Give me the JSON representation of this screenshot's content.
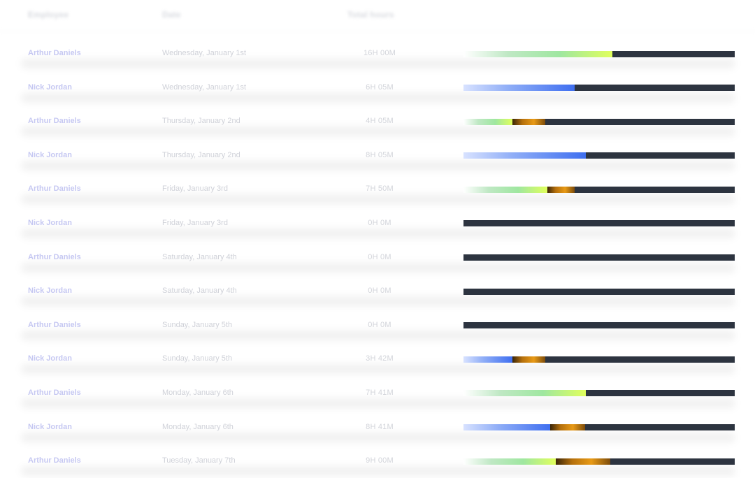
{
  "header": {
    "col_employee": "Employee",
    "col_date": "Date",
    "col_total": "Total hours"
  },
  "colors": {
    "bar_track": "#2d3440",
    "idle_segment": "#e89a16",
    "arthur_segment": "#9fe7a0",
    "nick_segment": "#3f6ff0"
  },
  "rows": [
    {
      "name": "Arthur Daniels",
      "date": "Wednesday, January 1st",
      "duration": "16H 00M",
      "bar": {
        "fill": 0.55,
        "idle": 0,
        "color": "green"
      }
    },
    {
      "name": "Nick Jordan",
      "date": "Wednesday, January 1st",
      "duration": "6H 05M",
      "bar": {
        "fill": 0.41,
        "idle": 0,
        "color": "blue"
      }
    },
    {
      "name": "Arthur Daniels",
      "date": "Thursday, January 2nd",
      "duration": "4H 05M",
      "bar": {
        "fill": 0.18,
        "idle": 0.12,
        "color": "green"
      }
    },
    {
      "name": "Nick Jordan",
      "date": "Thursday, January 2nd",
      "duration": "8H 05M",
      "bar": {
        "fill": 0.45,
        "idle": 0,
        "color": "blue"
      }
    },
    {
      "name": "Arthur Daniels",
      "date": "Friday, January 3rd",
      "duration": "7H 50M",
      "bar": {
        "fill": 0.31,
        "idle": 0.1,
        "color": "green"
      }
    },
    {
      "name": "Nick Jordan",
      "date": "Friday, January 3rd",
      "duration": "0H 0M",
      "bar": {
        "fill": 0,
        "idle": 0,
        "color": "blue"
      }
    },
    {
      "name": "Arthur Daniels",
      "date": "Saturday, January 4th",
      "duration": "0H 0M",
      "bar": {
        "fill": 0,
        "idle": 0,
        "color": "green"
      }
    },
    {
      "name": "Nick Jordan",
      "date": "Saturday, January 4th",
      "duration": "0H 0M",
      "bar": {
        "fill": 0,
        "idle": 0,
        "color": "blue"
      }
    },
    {
      "name": "Arthur Daniels",
      "date": "Sunday, January 5th",
      "duration": "0H 0M",
      "bar": {
        "fill": 0,
        "idle": 0,
        "color": "green"
      }
    },
    {
      "name": "Nick Jordan",
      "date": "Sunday, January 5th",
      "duration": "3H 42M",
      "bar": {
        "fill": 0.18,
        "idle": 0.12,
        "color": "blue"
      }
    },
    {
      "name": "Arthur Daniels",
      "date": "Monday, January 6th",
      "duration": "7H 41M",
      "bar": {
        "fill": 0.45,
        "idle": 0,
        "color": "green"
      }
    },
    {
      "name": "Nick Jordan",
      "date": "Monday, January 6th",
      "duration": "8H 41M",
      "bar": {
        "fill": 0.32,
        "idle": 0.13,
        "color": "blue"
      }
    },
    {
      "name": "Arthur Daniels",
      "date": "Tuesday, January 7th",
      "duration": "9H 00M",
      "bar": {
        "fill": 0.34,
        "idle": 0.2,
        "color": "green"
      }
    }
  ]
}
